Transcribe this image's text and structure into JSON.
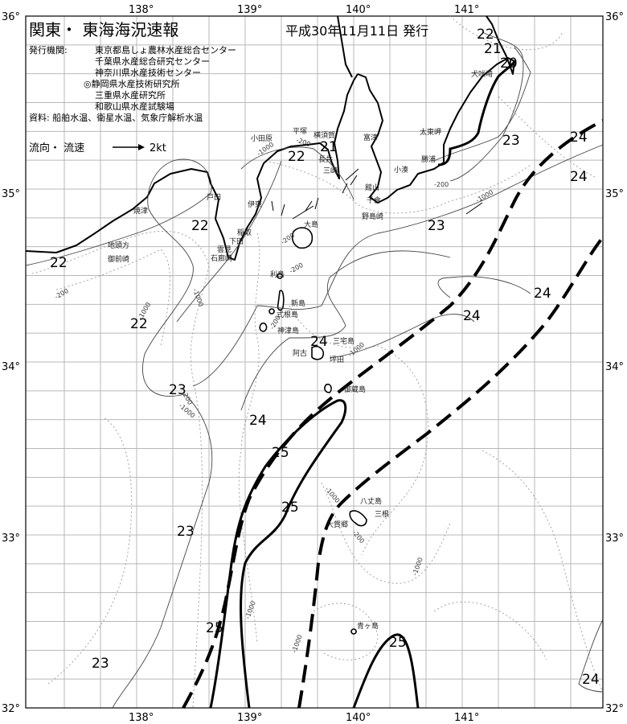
{
  "header": {
    "title": "関東・ 東海海況速報",
    "date": "平成30年11月11日 発行"
  },
  "issuers": {
    "label": "発行機関:",
    "items": [
      "東京都島しょ農林水産総合センター",
      "千葉県水産総合研究センター",
      "神奈川県水産技術センター",
      "◎静岡県水産技術研究所",
      "三重県水産研究所",
      "和歌山県水産試験場"
    ],
    "sources": "資料: 船舶水温、衛星水温、気象庁解析水温"
  },
  "legend": {
    "flow_label": "流向・ 流速",
    "scale_label": "2kt"
  },
  "axes": {
    "lon_ticks": [
      "138°",
      "139°",
      "140°",
      "141°"
    ],
    "lat_ticks": [
      "36°",
      "35°",
      "34°",
      "33°",
      "32°"
    ]
  },
  "places": {
    "odawara": "小田原",
    "hiratsuka": "平塚",
    "yokosuka": "横須賀",
    "futtsu": "富津",
    "nagai": "長井",
    "misaki": "三崎",
    "tateyama": "館山",
    "chikura": "千倉",
    "nojimazaki": "野島崎",
    "kominato": "小湊",
    "katsuura": "勝浦",
    "taitomisaki": "太東岬",
    "inubosaki": "犬吠埼",
    "ito": "伊東",
    "inatori": "稲取",
    "shimoda": "下田",
    "kumomi": "雲見",
    "iroozaki": "石廊崎",
    "heda": "戸田",
    "yaizu": "焼津",
    "jitokata": "地頭方",
    "omaezaki": "御前崎",
    "oshima": "大島",
    "toshima": "利島",
    "niijima": "新島",
    "shikinejima": "式根島",
    "kozushima": "神津島",
    "miyakejima": "三宅島",
    "ako": "阿古",
    "tsubota": "坪田",
    "mikurajima": "御蔵島",
    "hachijojima": "八丈島",
    "mitsune": "三根",
    "okago": "大賀郷",
    "aogashima": "青ヶ島"
  },
  "temperature_labels": [
    "22",
    "21",
    "20",
    "23",
    "24",
    "24",
    "22",
    "21",
    "22",
    "22",
    "23",
    "24",
    "24",
    "22",
    "24",
    "23",
    "24",
    "25",
    "25",
    "23",
    "25",
    "25",
    "23",
    "24"
  ],
  "depth_labels": [
    "-1000",
    "-200",
    "-200",
    "-1000",
    "-200",
    "-1000",
    "-200",
    "-1000",
    "-200",
    "-200",
    "-200",
    "-1000",
    "-1000",
    "-1000",
    "-200",
    "-1000",
    "-1000",
    "-1000"
  ]
}
